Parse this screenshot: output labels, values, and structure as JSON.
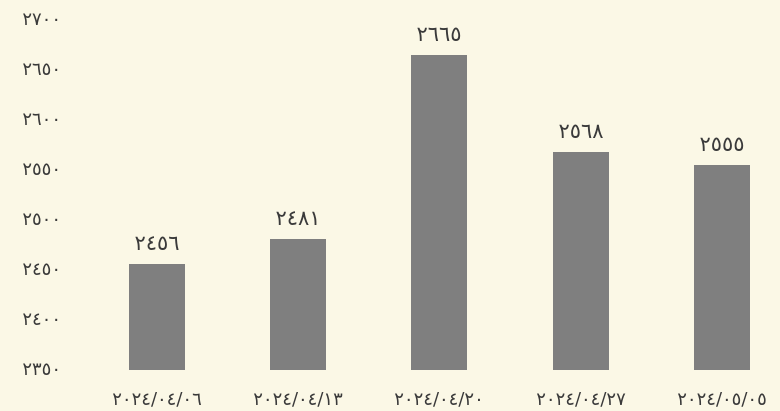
{
  "chart_data": {
    "type": "bar",
    "title": "",
    "xlabel": "",
    "ylabel": "",
    "categories": [
      "۲۰۲٤/۰٤/۰٦",
      "۲۰۲٤/۰٤/۱۳",
      "۲۰۲٤/۰٤/۲۰",
      "۲۰۲٤/۰٤/۲۷",
      "۲۰۲٤/۰٥/۰٥"
    ],
    "values": [
      2456,
      2481,
      2665,
      2568,
      2555
    ],
    "value_labels": [
      "۲٤٥٦",
      "۲٤٨١",
      "۲٦٦٥",
      "۲٥٦٨",
      "۲٥٥٥"
    ],
    "ylim": [
      2350,
      2700
    ],
    "yticks": [
      2350,
      2400,
      2450,
      2500,
      2550,
      2600,
      2650,
      2700
    ],
    "ytick_labels": [
      "۲۳٥۰",
      "۲٤۰۰",
      "۲٤٥۰",
      "۲٥۰۰",
      "۲٥٥۰",
      "۲٦۰۰",
      "۲٦٥۰",
      "۲۷۰۰"
    ],
    "grid": false,
    "legend": "none",
    "colors": {
      "bar": "#7f7f7f",
      "text": "#3a3a3a",
      "background": "#fbf8e6"
    }
  }
}
